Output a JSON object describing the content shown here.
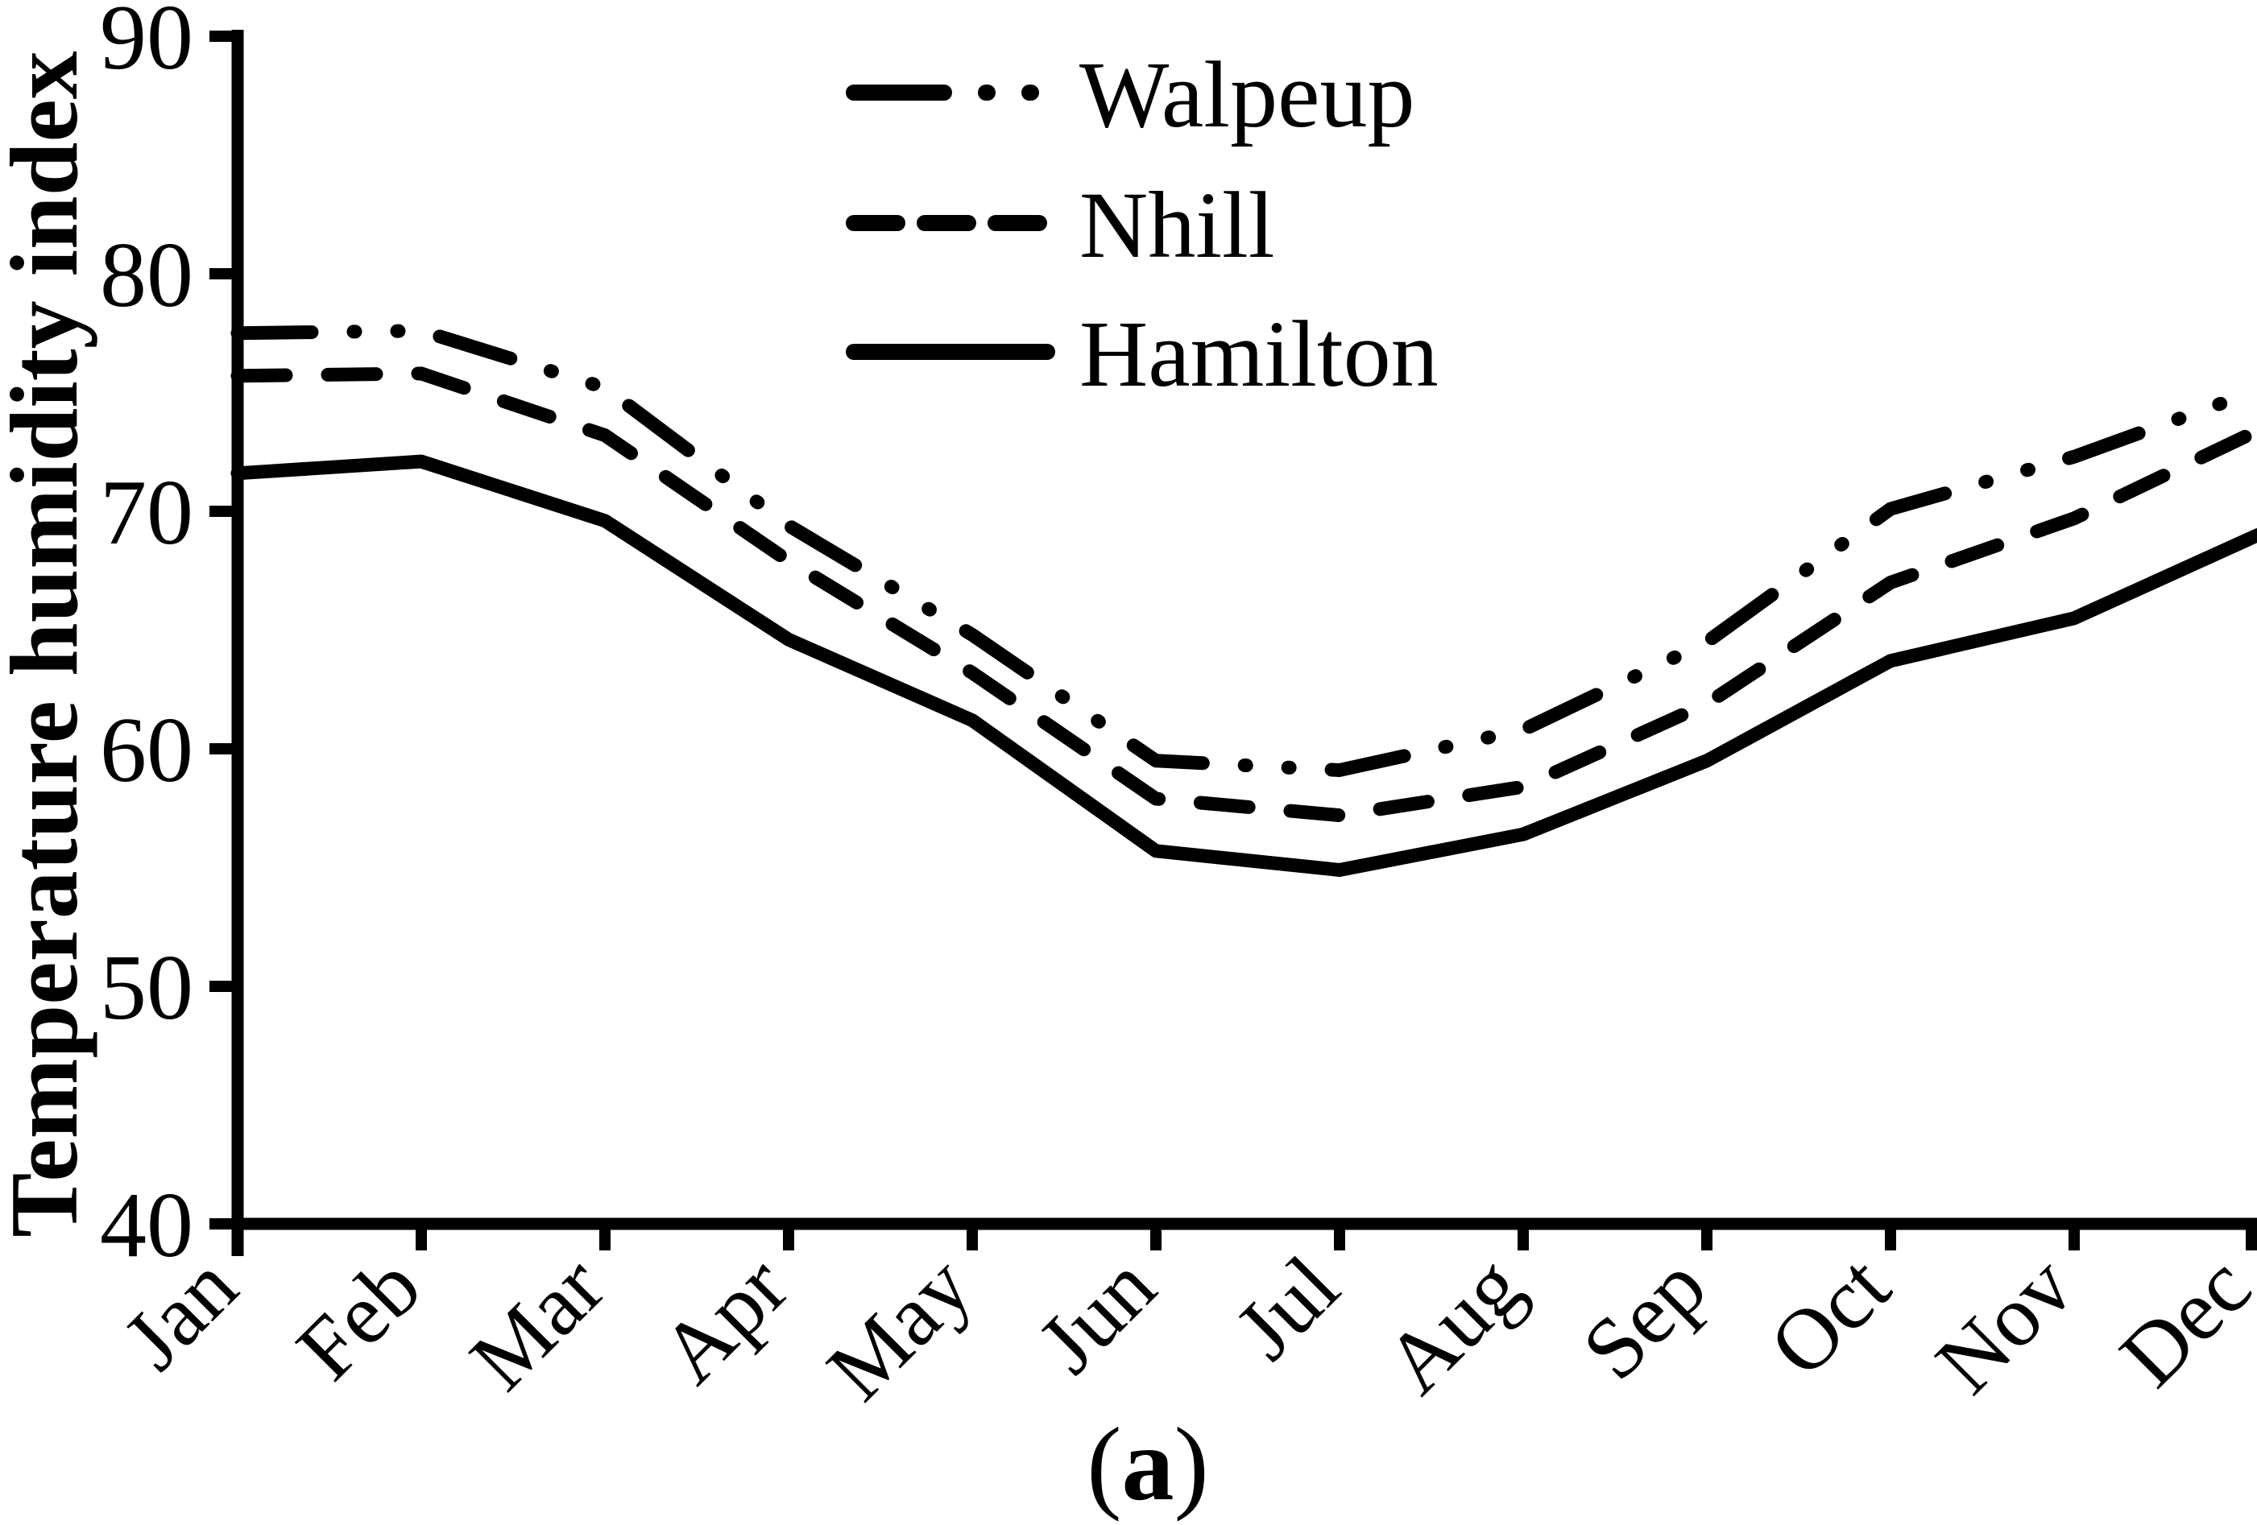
{
  "figure": {
    "background": "#ffffff",
    "line_color": "#000000",
    "caption": {
      "open": "(",
      "letter": "a",
      "close": ")"
    }
  },
  "chart_data": {
    "type": "line",
    "title": "",
    "xlabel": "",
    "ylabel": "Temperature humidity index",
    "categories": [
      "Jan",
      "Feb",
      "Mar",
      "Apr",
      "May",
      "Jun",
      "Jul",
      "Aug",
      "Sep",
      "Oct",
      "Nov",
      "Dec"
    ],
    "ylim": [
      40,
      90
    ],
    "yticks": [
      90,
      80,
      70,
      60,
      50,
      40
    ],
    "grid": false,
    "legend_position": "top-center-inside",
    "series": [
      {
        "name": "Walpeup",
        "style": "dash-dot-dot",
        "values": [
          77.5,
          77.6,
          75.2,
          69.4,
          64.8,
          59.5,
          59.1,
          60.8,
          64.5,
          70.1,
          72.3,
          75.1
        ]
      },
      {
        "name": "Nhill",
        "style": "dashed",
        "values": [
          75.7,
          75.8,
          73.2,
          67.9,
          63.2,
          57.9,
          57.2,
          58.4,
          61.9,
          67.0,
          69.7,
          73.4
        ]
      },
      {
        "name": "Hamilton",
        "style": "solid",
        "values": [
          71.6,
          72.1,
          69.6,
          64.6,
          61.2,
          55.7,
          54.9,
          56.4,
          59.5,
          63.7,
          65.5,
          69.0
        ]
      }
    ]
  }
}
